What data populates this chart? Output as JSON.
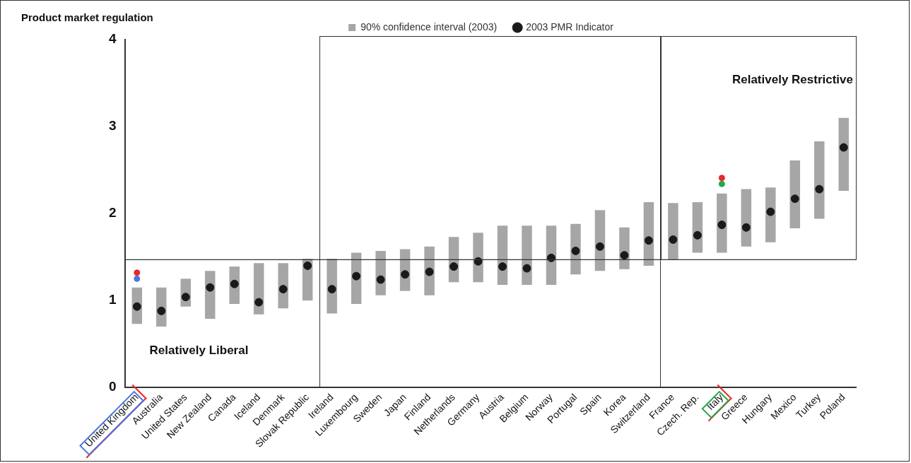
{
  "chart_data": {
    "type": "bar",
    "ylabel": "Product market regulation",
    "categories": [
      "United Kingdom",
      "Australia",
      "United States",
      "New Zealand",
      "Canada",
      "Iceland",
      "Denmark",
      "Slovak Republic",
      "Ireland",
      "Luxembourg",
      "Sweden",
      "Japan",
      "Finland",
      "Netherlands",
      "Germany",
      "Austria",
      "Belgium",
      "Norway",
      "Portugal",
      "Spain",
      "Korea",
      "Switzerland",
      "France",
      "Czech. Rep.",
      "Italy",
      "Greece",
      "Hungary",
      "Mexico",
      "Turkey",
      "Poland"
    ],
    "series": [
      {
        "name": "90% confidence interval (2003)",
        "color": "#a6a6a6",
        "base": [
          0.73,
          0.7,
          0.93,
          0.79,
          0.96,
          0.84,
          0.91,
          1.0,
          0.85,
          0.96,
          1.06,
          1.11,
          1.06,
          1.21,
          1.21,
          1.18,
          1.18,
          1.18,
          1.3,
          1.34,
          1.36,
          1.4,
          1.47,
          1.55,
          1.55,
          1.62,
          1.67,
          1.83,
          1.94,
          2.26
        ],
        "values": [
          0.42,
          0.45,
          0.32,
          0.55,
          0.43,
          0.59,
          0.52,
          0.48,
          0.63,
          0.59,
          0.51,
          0.48,
          0.56,
          0.52,
          0.57,
          0.68,
          0.68,
          0.68,
          0.58,
          0.7,
          0.48,
          0.73,
          0.65,
          0.58,
          0.68,
          0.66,
          0.63,
          0.78,
          0.89,
          0.84
        ]
      },
      {
        "name": "2003 PMR Indicator",
        "type": "scatter",
        "color": "#1a1a1a",
        "values": [
          0.93,
          0.88,
          1.04,
          1.15,
          1.19,
          0.98,
          1.13,
          1.4,
          1.13,
          1.28,
          1.24,
          1.3,
          1.33,
          1.39,
          1.45,
          1.39,
          1.37,
          1.49,
          1.57,
          1.62,
          1.52,
          1.69,
          1.7,
          1.75,
          1.87,
          1.84,
          2.02,
          2.17,
          2.28,
          2.76
        ]
      },
      {
        "type": "scatter",
        "color": "#e8262b",
        "x": [
          "United Kingdom",
          "Italy"
        ],
        "values": [
          1.32,
          2.41
        ]
      },
      {
        "type": "scatter",
        "color": "#4a78e0",
        "x": [
          "United Kingdom"
        ],
        "values": [
          1.25
        ]
      },
      {
        "type": "scatter",
        "color": "#22a84a",
        "x": [
          "Italy"
        ],
        "values": [
          2.34
        ]
      }
    ],
    "ylim": [
      0,
      4
    ],
    "yticks": [
      0,
      1,
      2,
      3,
      4
    ],
    "ref_lines": [
      {
        "axis": "y",
        "value": 1.47,
        "color": "#333333"
      }
    ],
    "annotations": [
      "Relatively Liberal",
      "Relatively Restrictive"
    ],
    "marker": "circle",
    "legend": "top",
    "grid": false
  }
}
